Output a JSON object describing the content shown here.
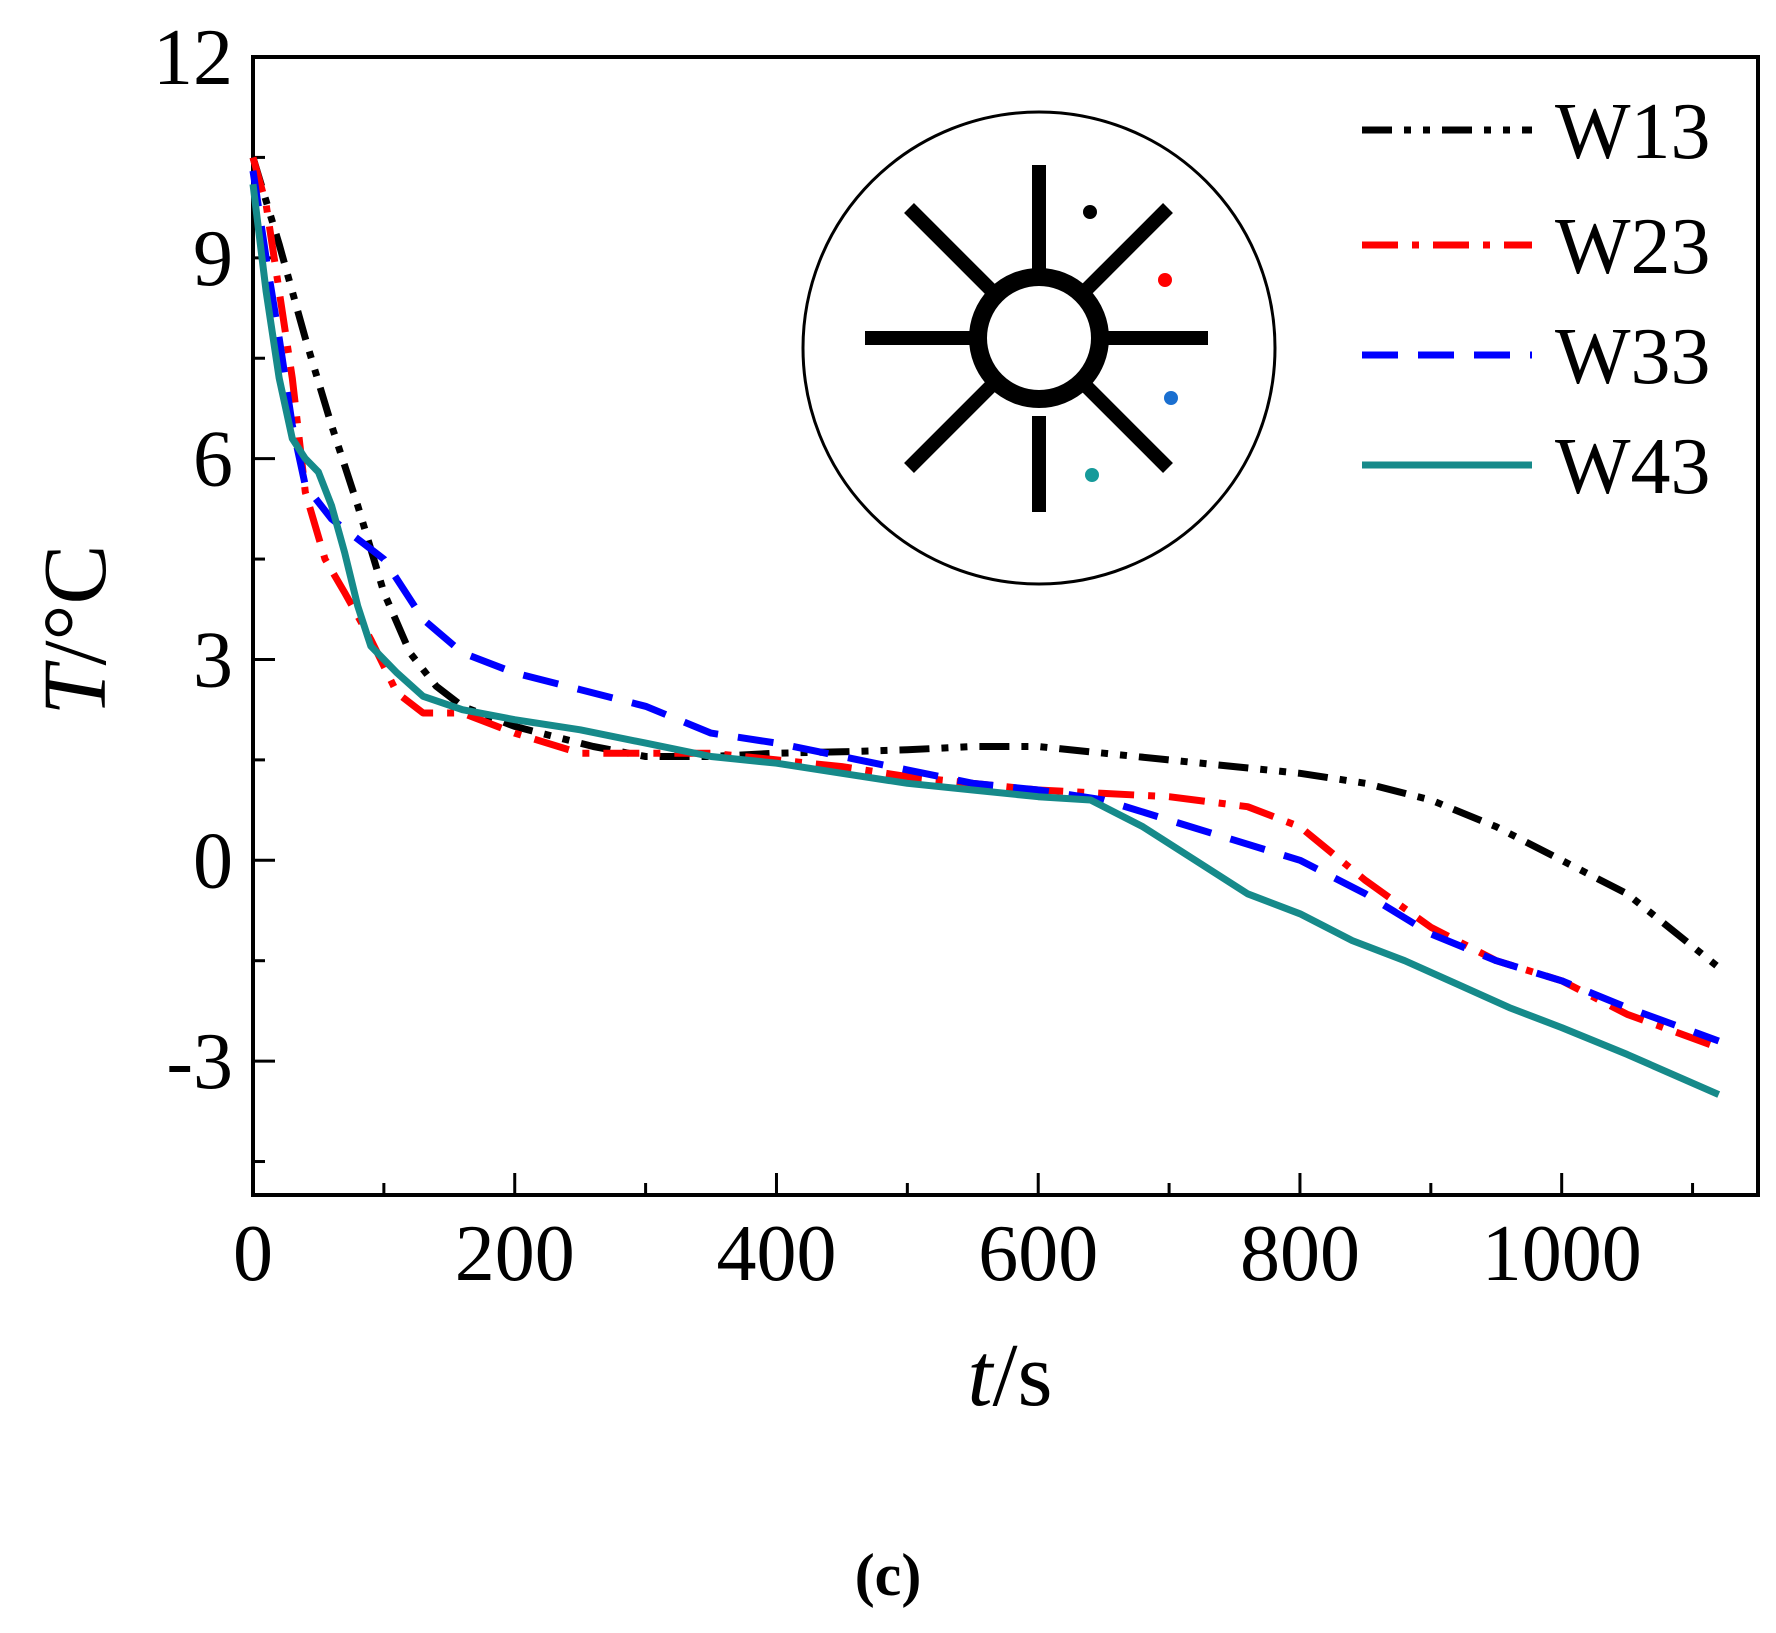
{
  "chart_data": {
    "type": "line",
    "xlabel_italic": "t",
    "xlabel_unit": "/s",
    "ylabel_italic": "T",
    "ylabel_unit": "/°C",
    "xlim": [
      0,
      1150
    ],
    "ylim": [
      -5,
      12
    ],
    "x_ticks": [
      0,
      200,
      400,
      600,
      800,
      1000
    ],
    "x_ticks_minor": [
      100,
      300,
      500,
      700,
      900,
      1100
    ],
    "y_ticks": [
      12,
      9,
      6,
      3,
      0,
      -3
    ],
    "y_tick_labels": [
      "12",
      "9",
      "6",
      "3",
      "0",
      "-3"
    ],
    "y_ticks_minor": [
      10.5,
      7.5,
      4.5,
      1.5,
      -1.5,
      -4.5
    ],
    "legend_position": "top-right",
    "series": [
      {
        "name": "W13",
        "color": "#000000",
        "style": "dash-dot-dot",
        "x": [
          0,
          20,
          40,
          60,
          80,
          100,
          120,
          140,
          160,
          180,
          200,
          230,
          260,
          300,
          350,
          400,
          450,
          500,
          550,
          600,
          650,
          700,
          750,
          800,
          850,
          900,
          950,
          1000,
          1050,
          1120
        ],
        "y": [
          10.5,
          9.2,
          7.8,
          6.5,
          5.3,
          4.0,
          3.1,
          2.6,
          2.3,
          2.15,
          2.0,
          1.85,
          1.7,
          1.55,
          1.55,
          1.6,
          1.62,
          1.65,
          1.7,
          1.7,
          1.6,
          1.5,
          1.4,
          1.3,
          1.15,
          0.9,
          0.5,
          0.0,
          -0.5,
          -1.6
        ]
      },
      {
        "name": "W23",
        "color": "#ff0000",
        "style": "dash-dot",
        "x": [
          0,
          10,
          20,
          30,
          40,
          55,
          70,
          90,
          110,
          130,
          160,
          200,
          250,
          300,
          350,
          400,
          450,
          500,
          550,
          600,
          650,
          700,
          760,
          800,
          850,
          900,
          950,
          1000,
          1050,
          1120
        ],
        "y": [
          10.5,
          9.8,
          8.5,
          7.2,
          5.5,
          4.5,
          4.0,
          3.3,
          2.5,
          2.2,
          2.2,
          1.9,
          1.6,
          1.6,
          1.6,
          1.5,
          1.4,
          1.25,
          1.15,
          1.05,
          1.0,
          0.95,
          0.8,
          0.5,
          -0.3,
          -1.0,
          -1.5,
          -1.8,
          -2.3,
          -2.8
        ]
      },
      {
        "name": "W33",
        "color": "#0000ff",
        "style": "dashed",
        "x": [
          0,
          10,
          20,
          30,
          40,
          60,
          80,
          100,
          130,
          160,
          200,
          250,
          300,
          350,
          400,
          450,
          500,
          550,
          600,
          650,
          700,
          750,
          800,
          850,
          900,
          950,
          1000,
          1050,
          1120
        ],
        "y": [
          10.3,
          9.0,
          7.8,
          6.5,
          5.6,
          5.1,
          4.8,
          4.5,
          3.6,
          3.1,
          2.8,
          2.55,
          2.3,
          1.9,
          1.75,
          1.55,
          1.35,
          1.15,
          1.05,
          0.9,
          0.6,
          0.3,
          0.0,
          -0.5,
          -1.1,
          -1.5,
          -1.8,
          -2.2,
          -2.7
        ]
      },
      {
        "name": "W43",
        "color": "#168a8a",
        "style": "solid",
        "x": [
          0,
          10,
          20,
          30,
          40,
          50,
          60,
          70,
          80,
          90,
          100,
          110,
          130,
          160,
          200,
          250,
          300,
          350,
          400,
          450,
          500,
          550,
          600,
          640,
          680,
          720,
          760,
          800,
          840,
          880,
          920,
          960,
          1000,
          1050,
          1120
        ],
        "y": [
          10.1,
          8.5,
          7.2,
          6.3,
          6.0,
          5.8,
          5.3,
          4.6,
          3.8,
          3.2,
          3.0,
          2.8,
          2.45,
          2.25,
          2.1,
          1.95,
          1.75,
          1.55,
          1.45,
          1.3,
          1.15,
          1.05,
          0.95,
          0.9,
          0.5,
          0.0,
          -0.5,
          -0.8,
          -1.2,
          -1.5,
          -1.85,
          -2.2,
          -2.5,
          -2.9,
          -3.5
        ]
      }
    ]
  },
  "inset": {
    "marker_colors": [
      "#000000",
      "#ff0000",
      "#1a6fd0",
      "#169a9a"
    ]
  },
  "caption": "(c)"
}
